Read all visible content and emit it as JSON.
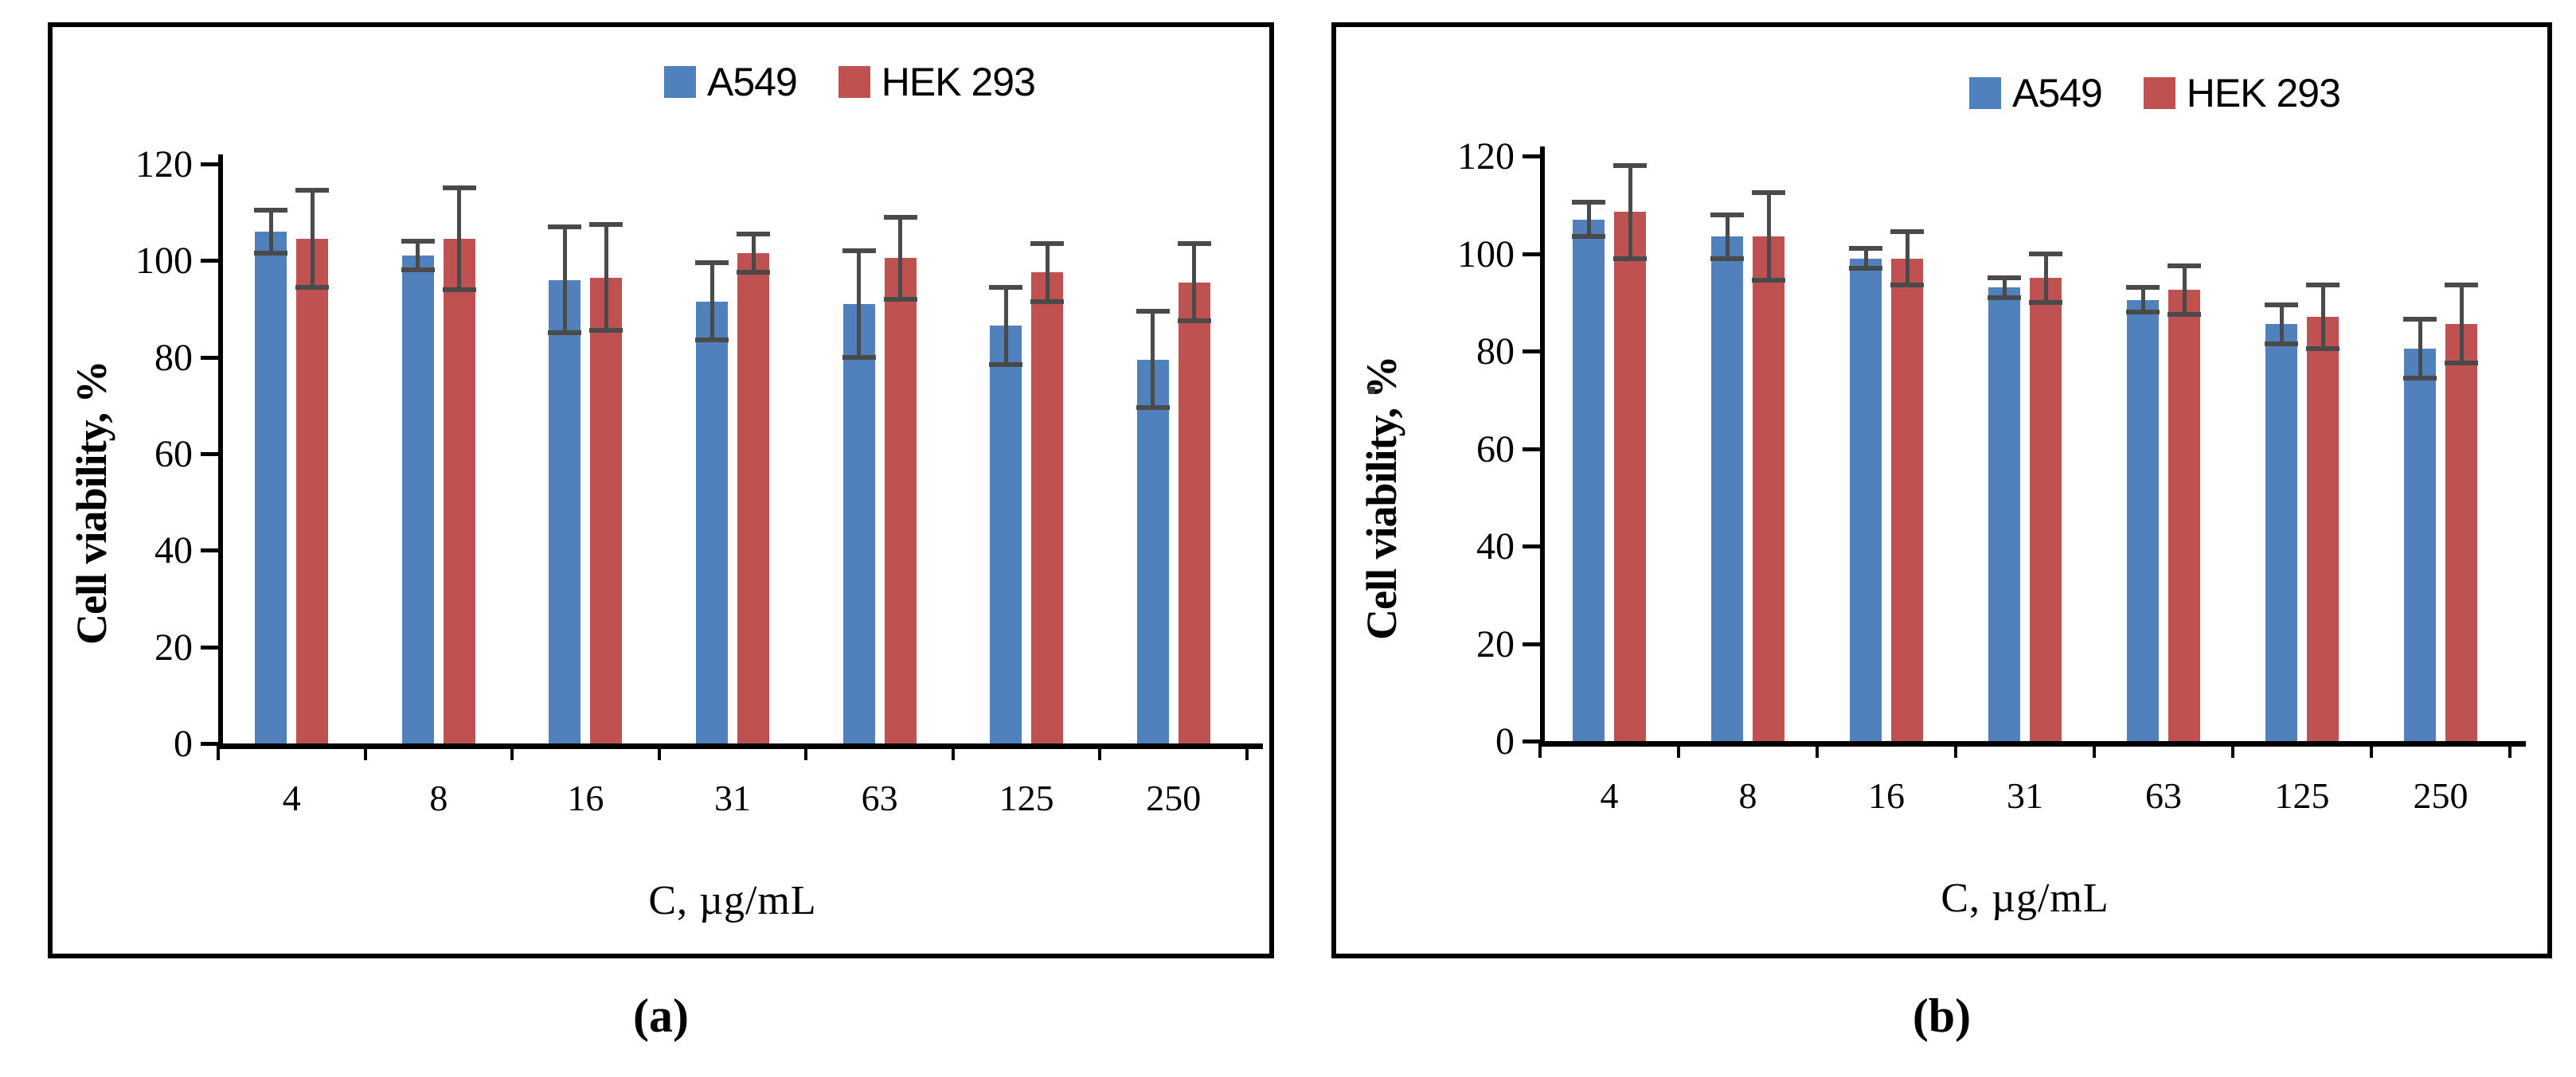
{
  "figure_background": "#ffffff",
  "panel_border_color": "#000000",
  "error_bar_color": "#4a4a4a",
  "chart_data": [
    {
      "type": "bar",
      "panel": "a",
      "caption": "(a)",
      "ylabel": "Cell viability, %",
      "xlabel": "C, µg/mL",
      "categories": [
        "4",
        "8",
        "16",
        "31",
        "63",
        "125",
        "250"
      ],
      "yticks": [
        0,
        20,
        40,
        60,
        80,
        100,
        120
      ],
      "ylim": [
        0,
        120
      ],
      "grid": false,
      "legend_position": "top-right",
      "series": [
        {
          "name": "A549",
          "color": "#5081BC",
          "values": [
            106,
            101,
            96,
            91.5,
            91,
            86.5,
            79.5
          ],
          "errors": [
            4.5,
            3,
            11,
            8,
            11,
            8,
            10
          ]
        },
        {
          "name": "HEK 293",
          "color": "#BF5150",
          "values": [
            104.5,
            104.5,
            96.5,
            101.5,
            100.5,
            97.5,
            95.5
          ],
          "errors": [
            10,
            10.5,
            11,
            4,
            8.5,
            6,
            8
          ]
        }
      ]
    },
    {
      "type": "bar",
      "panel": "b",
      "caption": "(b)",
      "ylabel": "Cell viability, %",
      "stray_mark": ".",
      "xlabel": "C, µg/mL",
      "categories": [
        "4",
        "8",
        "16",
        "31",
        "63",
        "125",
        "250"
      ],
      "yticks": [
        0,
        20,
        40,
        60,
        80,
        100,
        120
      ],
      "ylim": [
        0,
        120
      ],
      "grid": false,
      "legend_position": "top-right",
      "series": [
        {
          "name": "A549",
          "color": "#5081BC",
          "values": [
            107,
            103.5,
            99,
            93,
            90.5,
            85.5,
            80.5
          ],
          "errors": [
            3.5,
            4.5,
            2,
            2,
            2.5,
            4,
            6
          ]
        },
        {
          "name": "HEK 293",
          "color": "#BF5150",
          "values": [
            108.5,
            103.5,
            99,
            95,
            92.5,
            87,
            85.5
          ],
          "errors": [
            9.5,
            9,
            5.5,
            5,
            5,
            6.5,
            8
          ]
        }
      ]
    }
  ]
}
